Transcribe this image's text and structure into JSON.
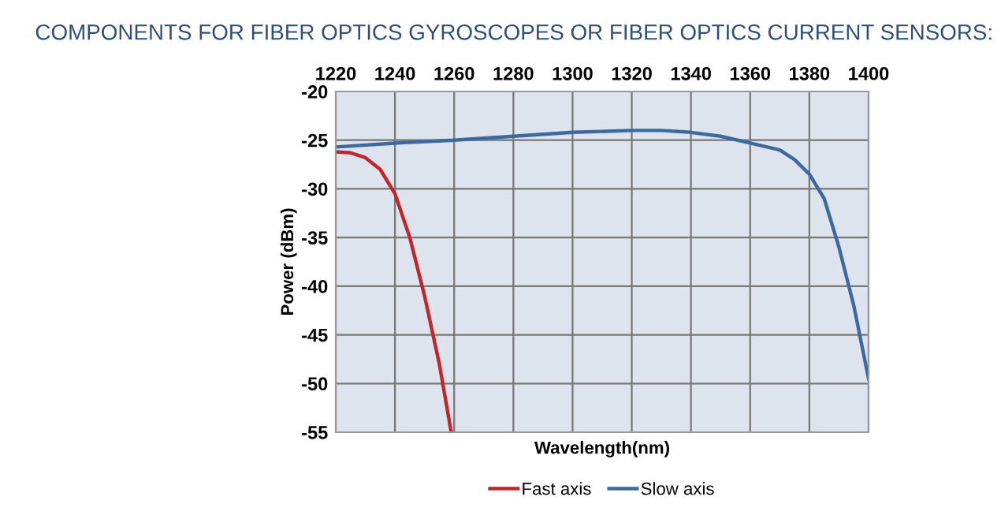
{
  "chart_data": {
    "type": "line",
    "title": "COMPONENTS FOR FIBER OPTICS GYROSCOPES OR FIBER OPTICS CURRENT SENSORS:",
    "xlabel": "Wavelength(nm)",
    "ylabel": "Power (dBm)",
    "xlim": [
      1220,
      1400
    ],
    "xticks": [
      1220,
      1240,
      1260,
      1280,
      1300,
      1320,
      1340,
      1360,
      1380,
      1400
    ],
    "ylim": [
      -55,
      -20
    ],
    "yticks": [
      -55,
      -50,
      -45,
      -40,
      -35,
      -30,
      -25,
      -20
    ],
    "grid": true,
    "legend": "bottom",
    "marker": "none",
    "line_style": "solid",
    "series": [
      {
        "name": "Fast axis",
        "color": "#c0272d",
        "x": [
          1220,
          1225,
          1230,
          1235,
          1240,
          1245,
          1250,
          1255,
          1259
        ],
        "values": [
          -26.2,
          -26.3,
          -26.8,
          -28,
          -30.5,
          -35,
          -41,
          -48,
          -55
        ]
      },
      {
        "name": "Slow axis",
        "color": "#3d6a9e",
        "x": [
          1220,
          1240,
          1260,
          1280,
          1300,
          1320,
          1330,
          1340,
          1350,
          1360,
          1370,
          1375,
          1380,
          1385,
          1390,
          1395,
          1400
        ],
        "values": [
          -25.7,
          -25.3,
          -25.0,
          -24.6,
          -24.2,
          -24.0,
          -24.0,
          -24.2,
          -24.6,
          -25.3,
          -26.0,
          -27.0,
          -28.5,
          -31,
          -36,
          -42,
          -49.5
        ]
      }
    ]
  }
}
